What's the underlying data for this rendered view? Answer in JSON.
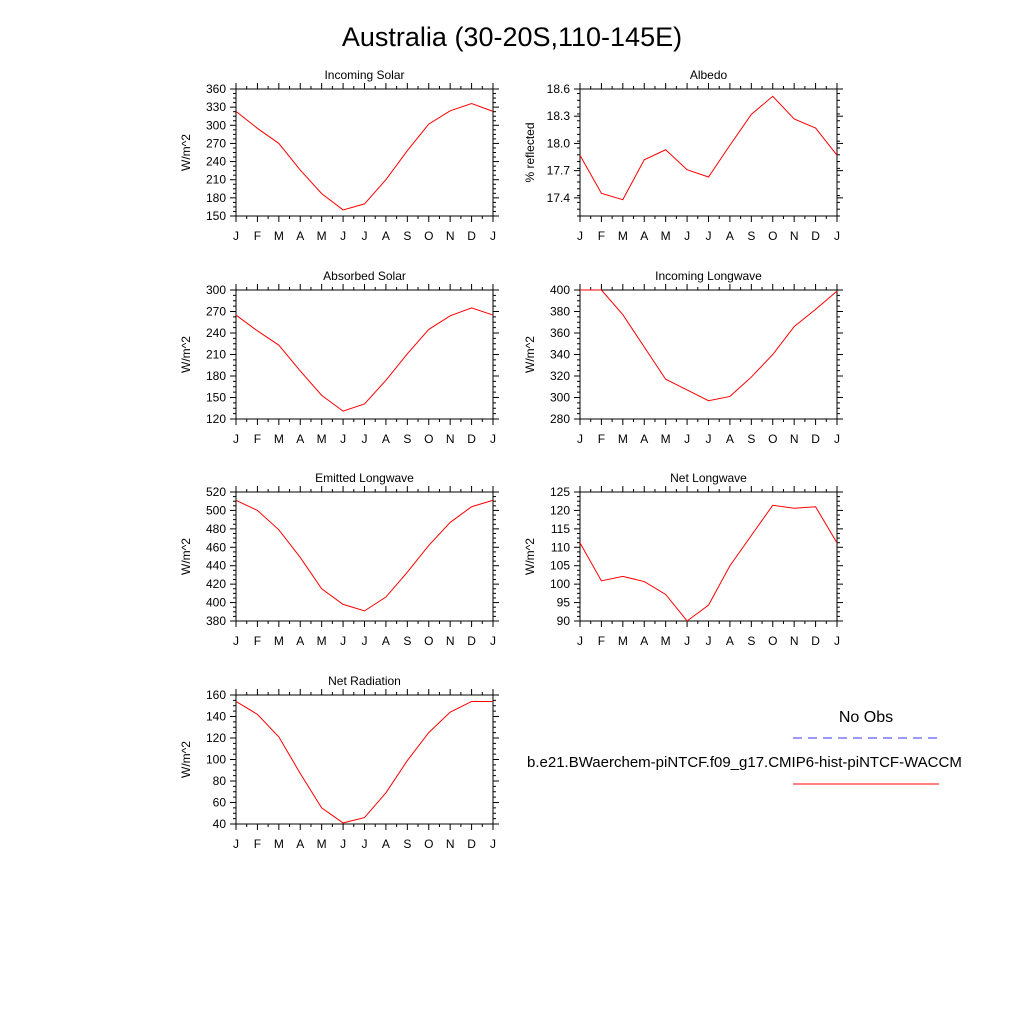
{
  "title": "Australia (30-20S,110-145E)",
  "months": [
    "J",
    "F",
    "M",
    "A",
    "M",
    "J",
    "J",
    "A",
    "S",
    "O",
    "N",
    "D",
    "J"
  ],
  "colors": {
    "model": "#ff0000",
    "obs": "#3333ff",
    "axis": "#000000"
  },
  "legend": {
    "obs_label": "No Obs",
    "model_label": "b.e21.BWaerchem-piNTCF.f09_g17.CMIP6-hist-piNTCF-WACCM"
  },
  "chart_data": [
    {
      "type": "line",
      "title": "Incoming Solar",
      "ylabel": "W/m^2",
      "ylim": [
        150,
        360
      ],
      "yticks": [
        150,
        180,
        210,
        240,
        270,
        300,
        330,
        360
      ],
      "ytick_labels": [
        "150",
        "180",
        "210",
        "240",
        "270",
        "300",
        "330",
        "360"
      ],
      "categories": [
        "J",
        "F",
        "M",
        "A",
        "M",
        "J",
        "J",
        "A",
        "S",
        "O",
        "N",
        "D",
        "J"
      ],
      "series": [
        {
          "values": [
            323,
            295,
            270,
            226,
            187,
            160,
            170,
            210,
            258,
            302,
            324,
            336,
            323
          ]
        }
      ]
    },
    {
      "type": "line",
      "title": "Albedo",
      "ylabel": "% reflected",
      "ylim": [
        17.2,
        18.6
      ],
      "yticks": [
        17.4,
        17.7,
        18.0,
        18.3,
        18.6
      ],
      "ytick_labels": [
        "17.4",
        "17.7",
        "18.0",
        "18.3",
        "18.6"
      ],
      "categories": [
        "J",
        "F",
        "M",
        "A",
        "M",
        "J",
        "J",
        "A",
        "S",
        "O",
        "N",
        "D",
        "J"
      ],
      "series": [
        {
          "values": [
            17.87,
            17.45,
            17.38,
            17.82,
            17.93,
            17.71,
            17.63,
            17.98,
            18.32,
            18.52,
            18.27,
            18.17,
            17.87
          ]
        }
      ]
    },
    {
      "type": "line",
      "title": "Absorbed Solar",
      "ylabel": "W/m^2",
      "ylim": [
        120,
        300
      ],
      "yticks": [
        120,
        150,
        180,
        210,
        240,
        270,
        300
      ],
      "ytick_labels": [
        "120",
        "150",
        "180",
        "210",
        "240",
        "270",
        "300"
      ],
      "categories": [
        "J",
        "F",
        "M",
        "A",
        "M",
        "J",
        "J",
        "A",
        "S",
        "O",
        "N",
        "D",
        "J"
      ],
      "series": [
        {
          "values": [
            265,
            243,
            223,
            187,
            153,
            131,
            141,
            174,
            211,
            245,
            264,
            275,
            265
          ]
        }
      ]
    },
    {
      "type": "line",
      "title": "Incoming Longwave",
      "ylabel": "W/m^2",
      "ylim": [
        280,
        400
      ],
      "yticks": [
        280,
        300,
        320,
        340,
        360,
        380,
        400
      ],
      "ytick_labels": [
        "280",
        "300",
        "320",
        "340",
        "360",
        "380",
        "400"
      ],
      "categories": [
        "J",
        "F",
        "M",
        "A",
        "M",
        "J",
        "J",
        "A",
        "S",
        "O",
        "N",
        "D",
        "J"
      ],
      "series": [
        {
          "values": [
            400,
            400,
            377,
            347,
            317,
            307,
            297,
            301,
            319,
            340,
            366,
            382,
            399
          ]
        }
      ]
    },
    {
      "type": "line",
      "title": "Emitted Longwave",
      "ylabel": "W/m^2",
      "ylim": [
        380,
        520
      ],
      "yticks": [
        380,
        400,
        420,
        440,
        460,
        480,
        500,
        520
      ],
      "ytick_labels": [
        "380",
        "400",
        "420",
        "440",
        "460",
        "480",
        "500",
        "520"
      ],
      "categories": [
        "J",
        "F",
        "M",
        "A",
        "M",
        "J",
        "J",
        "A",
        "S",
        "O",
        "N",
        "D",
        "J"
      ],
      "series": [
        {
          "values": [
            511,
            500,
            479,
            449,
            415,
            398,
            391,
            406,
            433,
            462,
            487,
            504,
            511
          ]
        }
      ]
    },
    {
      "type": "line",
      "title": "Net Longwave",
      "ylabel": "W/m^2",
      "ylim": [
        90,
        125
      ],
      "yticks": [
        90,
        95,
        100,
        105,
        110,
        115,
        120,
        125
      ],
      "ytick_labels": [
        "90",
        "95",
        "100",
        "105",
        "110",
        "115",
        "120",
        "125"
      ],
      "categories": [
        "J",
        "F",
        "M",
        "A",
        "M",
        "J",
        "J",
        "A",
        "S",
        "O",
        "N",
        "D",
        "J"
      ],
      "series": [
        {
          "values": [
            111.2,
            100.9,
            102.1,
            100.7,
            97.2,
            90.0,
            94.3,
            105.0,
            113.2,
            121.4,
            120.6,
            121.0,
            111.2
          ]
        }
      ]
    },
    {
      "type": "line",
      "title": "Net Radiation",
      "ylabel": "W/m^2",
      "ylim": [
        40,
        160
      ],
      "yticks": [
        40,
        60,
        80,
        100,
        120,
        140,
        160
      ],
      "ytick_labels": [
        "40",
        "60",
        "80",
        "100",
        "120",
        "140",
        "160"
      ],
      "categories": [
        "J",
        "F",
        "M",
        "A",
        "M",
        "J",
        "J",
        "A",
        "S",
        "O",
        "N",
        "D",
        "J"
      ],
      "series": [
        {
          "values": [
            154,
            142,
            121,
            87,
            55,
            41,
            46,
            69,
            99,
            125,
            144,
            154,
            154
          ]
        }
      ]
    }
  ]
}
